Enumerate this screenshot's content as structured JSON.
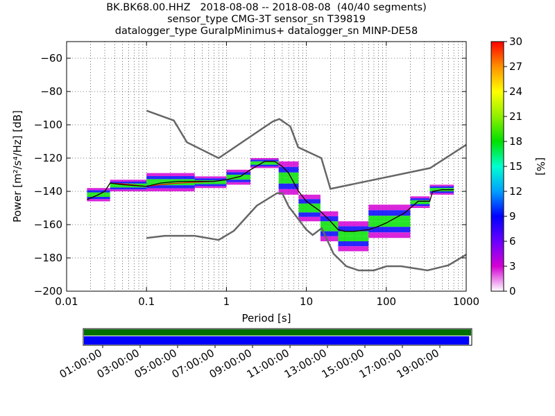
{
  "chart_data": {
    "type": "heatmap",
    "title_lines": [
      "BK.BK68.00.HHZ   2018-08-08 -- 2018-08-08  (40/40 segments)",
      "sensor_type CMG-3T sensor_sn T39819",
      "datalogger_type GuralpMinimus+ datalogger_sn MINP-DE58"
    ],
    "xlabel": "Period [s]",
    "ylabel": "Power [m²/s⁴/Hz] [dB]",
    "x_scale": "log",
    "xlim": [
      0.01,
      1000
    ],
    "ylim": [
      -200,
      -50
    ],
    "x_ticks": [
      0.01,
      0.1,
      1,
      10,
      100,
      1000
    ],
    "x_tick_labels": [
      "0.01",
      "0.1",
      "1",
      "10",
      "100",
      "1000"
    ],
    "y_ticks": [
      -200,
      -180,
      -160,
      -140,
      -120,
      -100,
      -80,
      -60
    ],
    "y_tick_labels": [
      "−200",
      "−180",
      "−160",
      "−140",
      "−120",
      "−100",
      "−80",
      "−60"
    ],
    "grid": true,
    "colorbar": {
      "label": "[%]",
      "range": [
        0,
        30
      ],
      "ticks": [
        0,
        3,
        6,
        9,
        12,
        15,
        18,
        21,
        24,
        27,
        30
      ],
      "tick_labels": [
        "0",
        "3",
        "6",
        "9",
        "12",
        "15",
        "18",
        "21",
        "24",
        "27",
        "30"
      ],
      "colors": [
        "#ffffff",
        "#d400d4",
        "#6a00ff",
        "#0000ff",
        "#00a0ff",
        "#00ffd0",
        "#00e000",
        "#90f000",
        "#ffff00",
        "#ff9000",
        "#ff0000"
      ]
    },
    "nlnm": {
      "name": "low noise model",
      "color": "#666666",
      "points": [
        [
          0.1,
          -168
        ],
        [
          0.17,
          -166.7
        ],
        [
          0.4,
          -166.7
        ],
        [
          0.8,
          -169.2
        ],
        [
          1.24,
          -163.7
        ],
        [
          2.4,
          -148.6
        ],
        [
          4.3,
          -141.1
        ],
        [
          5.0,
          -141.1
        ],
        [
          6.0,
          -149
        ],
        [
          10,
          -163
        ],
        [
          12,
          -166.2
        ],
        [
          15.6,
          -162.1
        ],
        [
          21.9,
          -177.5
        ],
        [
          31.6,
          -185
        ],
        [
          45,
          -187.5
        ],
        [
          70,
          -187.5
        ],
        [
          101,
          -185
        ],
        [
          154,
          -185
        ],
        [
          328,
          -187.5
        ],
        [
          600,
          -184.4
        ],
        [
          1000,
          -178
        ]
      ]
    },
    "nhnm": {
      "name": "high noise model",
      "color": "#666666",
      "points": [
        [
          0.1,
          -91.5
        ],
        [
          0.22,
          -97.4
        ],
        [
          0.32,
          -110.5
        ],
        [
          0.8,
          -120
        ],
        [
          3.8,
          -98
        ],
        [
          4.6,
          -96.5
        ],
        [
          6.3,
          -101
        ],
        [
          7.9,
          -113.5
        ],
        [
          15.4,
          -120
        ],
        [
          20,
          -138.5
        ],
        [
          354,
          -126
        ],
        [
          1000,
          -112
        ]
      ]
    },
    "mean_curve": {
      "name": "mean",
      "color": "#000000",
      "points": [
        [
          0.018,
          -145
        ],
        [
          0.025,
          -142
        ],
        [
          0.03,
          -140
        ],
        [
          0.035,
          -135
        ],
        [
          0.05,
          -136
        ],
        [
          0.1,
          -137
        ],
        [
          0.15,
          -135
        ],
        [
          0.25,
          -134
        ],
        [
          0.4,
          -134
        ],
        [
          0.7,
          -134
        ],
        [
          1.0,
          -133
        ],
        [
          1.5,
          -131
        ],
        [
          2.0,
          -127
        ],
        [
          3.0,
          -122
        ],
        [
          4.0,
          -122
        ],
        [
          5.0,
          -125
        ],
        [
          6.0,
          -129
        ],
        [
          8.0,
          -140
        ],
        [
          10.0,
          -146
        ],
        [
          15.0,
          -152
        ],
        [
          20.0,
          -158
        ],
        [
          25.0,
          -163
        ],
        [
          30.0,
          -164
        ],
        [
          40.0,
          -164
        ],
        [
          60.0,
          -163
        ],
        [
          80.0,
          -161
        ],
        [
          100.0,
          -159
        ],
        [
          130.0,
          -156
        ],
        [
          170.0,
          -153
        ],
        [
          200.0,
          -150
        ],
        [
          250.0,
          -146
        ],
        [
          350.0,
          -146
        ],
        [
          380.0,
          -140
        ],
        [
          500.0,
          -139
        ],
        [
          700.0,
          -139
        ]
      ]
    },
    "mode_curve": {
      "name": "mode",
      "color": "#ff0000",
      "points": [
        [
          0.018,
          -145
        ],
        [
          0.025,
          -142
        ],
        [
          0.03,
          -140
        ],
        [
          0.035,
          -135
        ],
        [
          0.05,
          -135.5
        ],
        [
          0.1,
          -137
        ],
        [
          0.15,
          -136
        ],
        [
          0.25,
          -135
        ],
        [
          0.4,
          -134.5
        ],
        [
          0.7,
          -134
        ],
        [
          1.0,
          -133
        ],
        [
          1.5,
          -131
        ],
        [
          2.0,
          -127
        ],
        [
          3.0,
          -122
        ],
        [
          4.0,
          -122
        ],
        [
          5.0,
          -125
        ],
        [
          6.0,
          -129
        ],
        [
          8.0,
          -140
        ],
        [
          10.0,
          -146
        ],
        [
          15.0,
          -152
        ],
        [
          20.0,
          -158
        ],
        [
          25.0,
          -163
        ],
        [
          30.0,
          -164
        ],
        [
          40.0,
          -164
        ],
        [
          60.0,
          -163
        ],
        [
          80.0,
          -161
        ],
        [
          100.0,
          -159
        ],
        [
          130.0,
          -156
        ],
        [
          170.0,
          -153
        ],
        [
          200.0,
          -150
        ],
        [
          250.0,
          -146
        ],
        [
          350.0,
          -146
        ],
        [
          380.0,
          -140
        ],
        [
          500.0,
          -139
        ],
        [
          700.0,
          -139
        ]
      ]
    },
    "density_bands": [
      {
        "x": [
          0.018,
          0.035
        ],
        "ymin": -146,
        "ymax": -138
      },
      {
        "x": [
          0.035,
          0.1
        ],
        "ymin": -140,
        "ymax": -133
      },
      {
        "x": [
          0.1,
          0.4
        ],
        "ymin": -140,
        "ymax": -129
      },
      {
        "x": [
          0.4,
          1.0
        ],
        "ymin": -138,
        "ymax": -131
      },
      {
        "x": [
          1.0,
          2.0
        ],
        "ymin": -136,
        "ymax": -127
      },
      {
        "x": [
          2.0,
          4.5
        ],
        "ymin": -126,
        "ymax": -120
      },
      {
        "x": [
          4.5,
          8.0
        ],
        "ymin": -142,
        "ymax": -122
      },
      {
        "x": [
          8.0,
          15.0
        ],
        "ymin": -158,
        "ymax": -142
      },
      {
        "x": [
          15.0,
          25.0
        ],
        "ymin": -170,
        "ymax": -152
      },
      {
        "x": [
          25.0,
          60.0
        ],
        "ymin": -176,
        "ymax": -158
      },
      {
        "x": [
          60.0,
          200.0
        ],
        "ymin": -168,
        "ymax": -148
      },
      {
        "x": [
          200.0,
          350.0
        ],
        "ymin": -150,
        "ymax": -143
      },
      {
        "x": [
          350.0,
          700.0
        ],
        "ymin": -142,
        "ymax": -136
      }
    ],
    "coverage": {
      "tick_labels": [
        "01:00:00",
        "03:00:00",
        "05:00:00",
        "07:00:00",
        "09:00:00",
        "11:00:00",
        "13:00:00",
        "15:00:00",
        "17:00:00",
        "19:00:00"
      ],
      "data_fraction": 0.995,
      "data_color": "#0000ff",
      "processed_color": "#007000"
    }
  }
}
